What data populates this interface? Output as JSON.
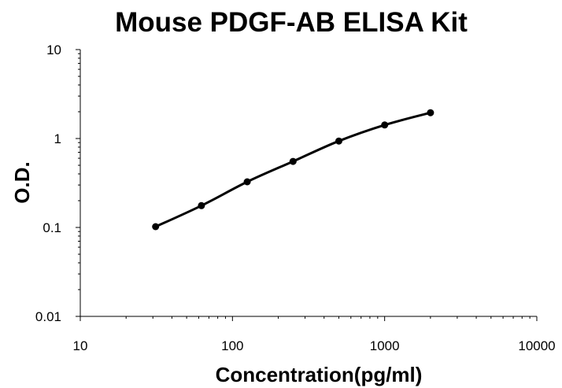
{
  "chart_data": {
    "type": "line",
    "title": "Mouse PDGF-AB ELISA Kit",
    "xlabel": "Concentration(pg/ml)",
    "ylabel": "O.D.",
    "x_scale": "log",
    "y_scale": "log",
    "xlim": [
      10,
      10000
    ],
    "ylim": [
      0.01,
      10
    ],
    "x_ticks": [
      "10",
      "100",
      "1000",
      "10000"
    ],
    "y_ticks": [
      "10",
      "1",
      "0.1",
      "0.01"
    ],
    "grid": false,
    "legend": "none",
    "line_color": "#000000",
    "series": [
      {
        "x": [
          31.25,
          62.5,
          125,
          250,
          500,
          1000,
          2000
        ],
        "y": [
          0.102,
          0.176,
          0.326,
          0.553,
          0.937,
          1.42,
          1.95
        ]
      }
    ]
  }
}
